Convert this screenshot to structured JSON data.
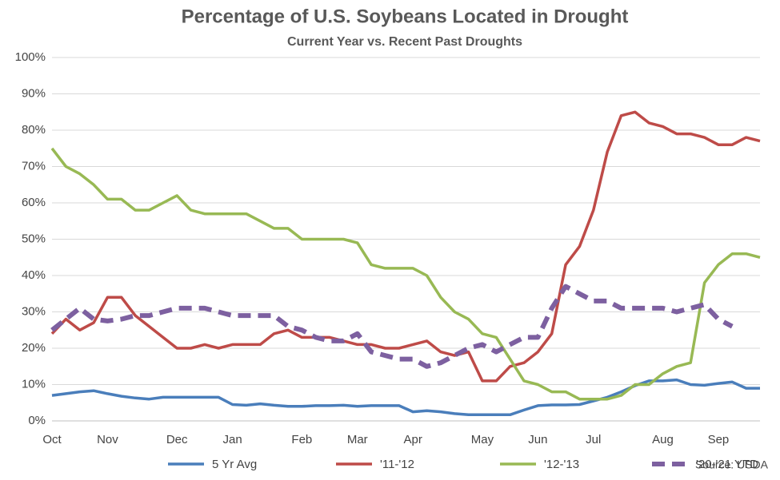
{
  "chart_data": {
    "type": "line",
    "title": "Percentage of U.S. Soybeans Located in Drought",
    "subtitle": "Current Year vs. Recent Past Droughts",
    "source": "Source: USDA",
    "categories": [
      "Oct",
      null,
      null,
      null,
      "Nov",
      null,
      null,
      null,
      null,
      "Dec",
      null,
      null,
      null,
      "Jan",
      null,
      null,
      null,
      null,
      "Feb",
      null,
      null,
      null,
      "Mar",
      null,
      null,
      null,
      "Apr",
      null,
      null,
      null,
      null,
      "May",
      null,
      null,
      null,
      "Jun",
      null,
      null,
      null,
      "Jul",
      null,
      null,
      null,
      null,
      "Aug",
      null,
      null,
      null,
      "Sep",
      null,
      null,
      null
    ],
    "ylim": [
      0,
      100
    ],
    "yticks": [
      {
        "value": 0,
        "label": "0%"
      },
      {
        "value": 10,
        "label": "10%"
      },
      {
        "value": 20,
        "label": "20%"
      },
      {
        "value": 30,
        "label": "30%"
      },
      {
        "value": 40,
        "label": "40%"
      },
      {
        "value": 50,
        "label": "50%"
      },
      {
        "value": 60,
        "label": "60%"
      },
      {
        "value": 70,
        "label": "70%"
      },
      {
        "value": 80,
        "label": "80%"
      },
      {
        "value": 90,
        "label": "90%"
      },
      {
        "value": 100,
        "label": "100%"
      }
    ],
    "grid": true,
    "legend": "bottom",
    "series": [
      {
        "name": "5 Yr Avg",
        "color": "#4a7ebb",
        "dashed": false,
        "values": [
          7,
          7.5,
          8,
          8.3,
          7.5,
          6.8,
          6.3,
          6,
          6.5,
          6.5,
          6.5,
          6.5,
          6.5,
          4.5,
          4.3,
          4.7,
          4.3,
          4,
          4,
          4.2,
          4.2,
          4.3,
          4,
          4.2,
          4.2,
          4.2,
          2.5,
          2.8,
          2.5,
          2,
          1.7,
          1.7,
          1.7,
          1.7,
          3,
          4.2,
          4.4,
          4.4,
          4.5,
          5.5,
          6.5,
          8,
          9.7,
          11,
          11,
          11.3,
          10,
          9.8,
          10.3,
          10.7,
          9,
          9
        ]
      },
      {
        "name": "'11-'12",
        "color": "#be4b48",
        "dashed": false,
        "values": [
          24,
          28,
          25,
          27,
          34,
          34,
          29,
          26,
          23,
          20,
          20,
          21,
          20,
          21,
          21,
          21,
          24,
          25,
          23,
          23,
          23,
          22,
          21,
          21,
          20,
          20,
          21,
          22,
          19,
          18,
          19,
          11,
          11,
          15,
          16,
          19,
          24,
          43,
          48,
          58,
          74,
          84,
          85,
          82,
          81,
          79,
          79,
          78,
          76,
          76,
          78,
          77
        ]
      },
      {
        "name": "'12-'13",
        "color": "#98b954",
        "dashed": false,
        "values": [
          75,
          70,
          68,
          65,
          61,
          61,
          58,
          58,
          60,
          62,
          58,
          57,
          57,
          57,
          57,
          55,
          53,
          53,
          50,
          50,
          50,
          50,
          49,
          43,
          42,
          42,
          42,
          40,
          34,
          30,
          28,
          24,
          23,
          17,
          11,
          10,
          8,
          8,
          6,
          6,
          6,
          7,
          10,
          10,
          13,
          15,
          16,
          38,
          43,
          46,
          46,
          45
        ]
      },
      {
        "name": "'20-'21 YTD",
        "color": "#7d60a0",
        "dashed": true,
        "values": [
          25,
          28,
          31,
          28,
          27.5,
          28,
          29,
          29,
          30,
          31,
          31,
          31,
          30,
          29,
          29,
          29,
          29,
          26,
          25,
          23,
          22,
          22,
          24,
          19,
          18,
          17,
          17,
          15,
          16,
          18,
          20,
          21,
          19,
          21,
          23,
          23,
          31,
          37,
          35,
          33,
          33,
          31,
          31,
          31,
          31,
          30,
          31,
          32,
          28,
          26,
          null,
          null
        ]
      }
    ]
  }
}
